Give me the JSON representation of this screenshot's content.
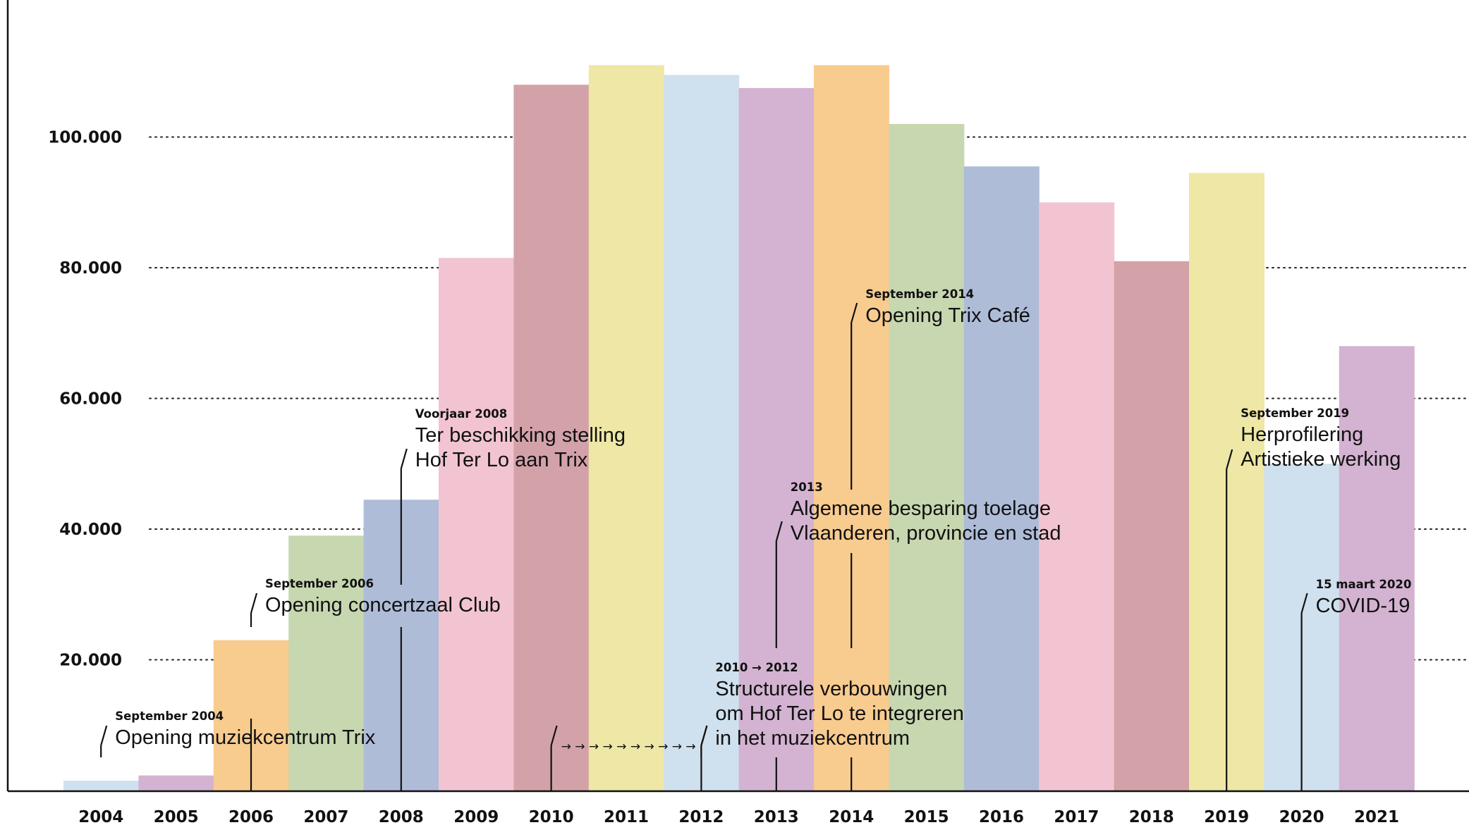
{
  "chart_data": {
    "type": "bar",
    "categories": [
      "2004",
      "2005",
      "2006",
      "2007",
      "2008",
      "2009",
      "2010",
      "2011",
      "2012",
      "2013",
      "2014",
      "2015",
      "2016",
      "2017",
      "2018",
      "2019",
      "2020",
      "2021"
    ],
    "values": [
      1500,
      2300,
      23000,
      39000,
      44500,
      81500,
      108000,
      111000,
      109500,
      107500,
      111000,
      102000,
      95500,
      90000,
      81000,
      94500,
      50000,
      68000
    ],
    "colors": [
      "#cfe0ee",
      "#d3b3d1",
      "#f8cb8f",
      "#c7d7b0",
      "#aebcd8",
      "#f2c4d2",
      "#d3a2a9",
      "#eee7a6",
      "#cfe0ee",
      "#d3b3d1",
      "#f8cb8f",
      "#c7d7b0",
      "#aebcd8",
      "#f2c4d2",
      "#d3a2a9",
      "#eee7a6",
      "#cfe0ee",
      "#d3b3d1"
    ],
    "title": "",
    "xlabel": "",
    "ylabel": "",
    "ylim": [
      0,
      120000
    ],
    "yticks": [
      20000,
      40000,
      60000,
      80000,
      100000
    ],
    "ytick_labels": [
      "20.000",
      "40.000",
      "60.000",
      "80.000",
      "100.000"
    ],
    "grid": "dotted horizontal",
    "annotations": [
      {
        "year": "2004",
        "head": "September 2004",
        "lines": [
          "Opening muziekcentrum Trix"
        ]
      },
      {
        "year": "2006",
        "head": "September 2006",
        "lines": [
          "Opening concertzaal Club"
        ]
      },
      {
        "year": "2008",
        "head": "Voorjaar 2008",
        "lines": [
          "Ter beschikking stelling",
          "Hof Ter Lo aan Trix"
        ]
      },
      {
        "year": "2012",
        "head": "2010 → 2012",
        "lines": [
          "Structurele verbouwingen",
          "om Hof Ter Lo te integreren",
          "in het muziekcentrum"
        ]
      },
      {
        "year": "2013",
        "head": "2013",
        "lines": [
          "Algemene besparing toelage",
          "Vlaanderen, provincie en stad"
        ]
      },
      {
        "year": "2014",
        "head": "September 2014",
        "lines": [
          "Opening Trix Café"
        ]
      },
      {
        "year": "2019",
        "head": "September 2019",
        "lines": [
          "Herprofilering",
          "Artistieke werking"
        ]
      },
      {
        "year": "2020",
        "head": "15 maart 2020",
        "lines": [
          "COVID-19"
        ]
      }
    ],
    "period_arrow": {
      "from": "2010",
      "to": "2012",
      "glyphs": "→ → → → → → → → → →"
    }
  }
}
